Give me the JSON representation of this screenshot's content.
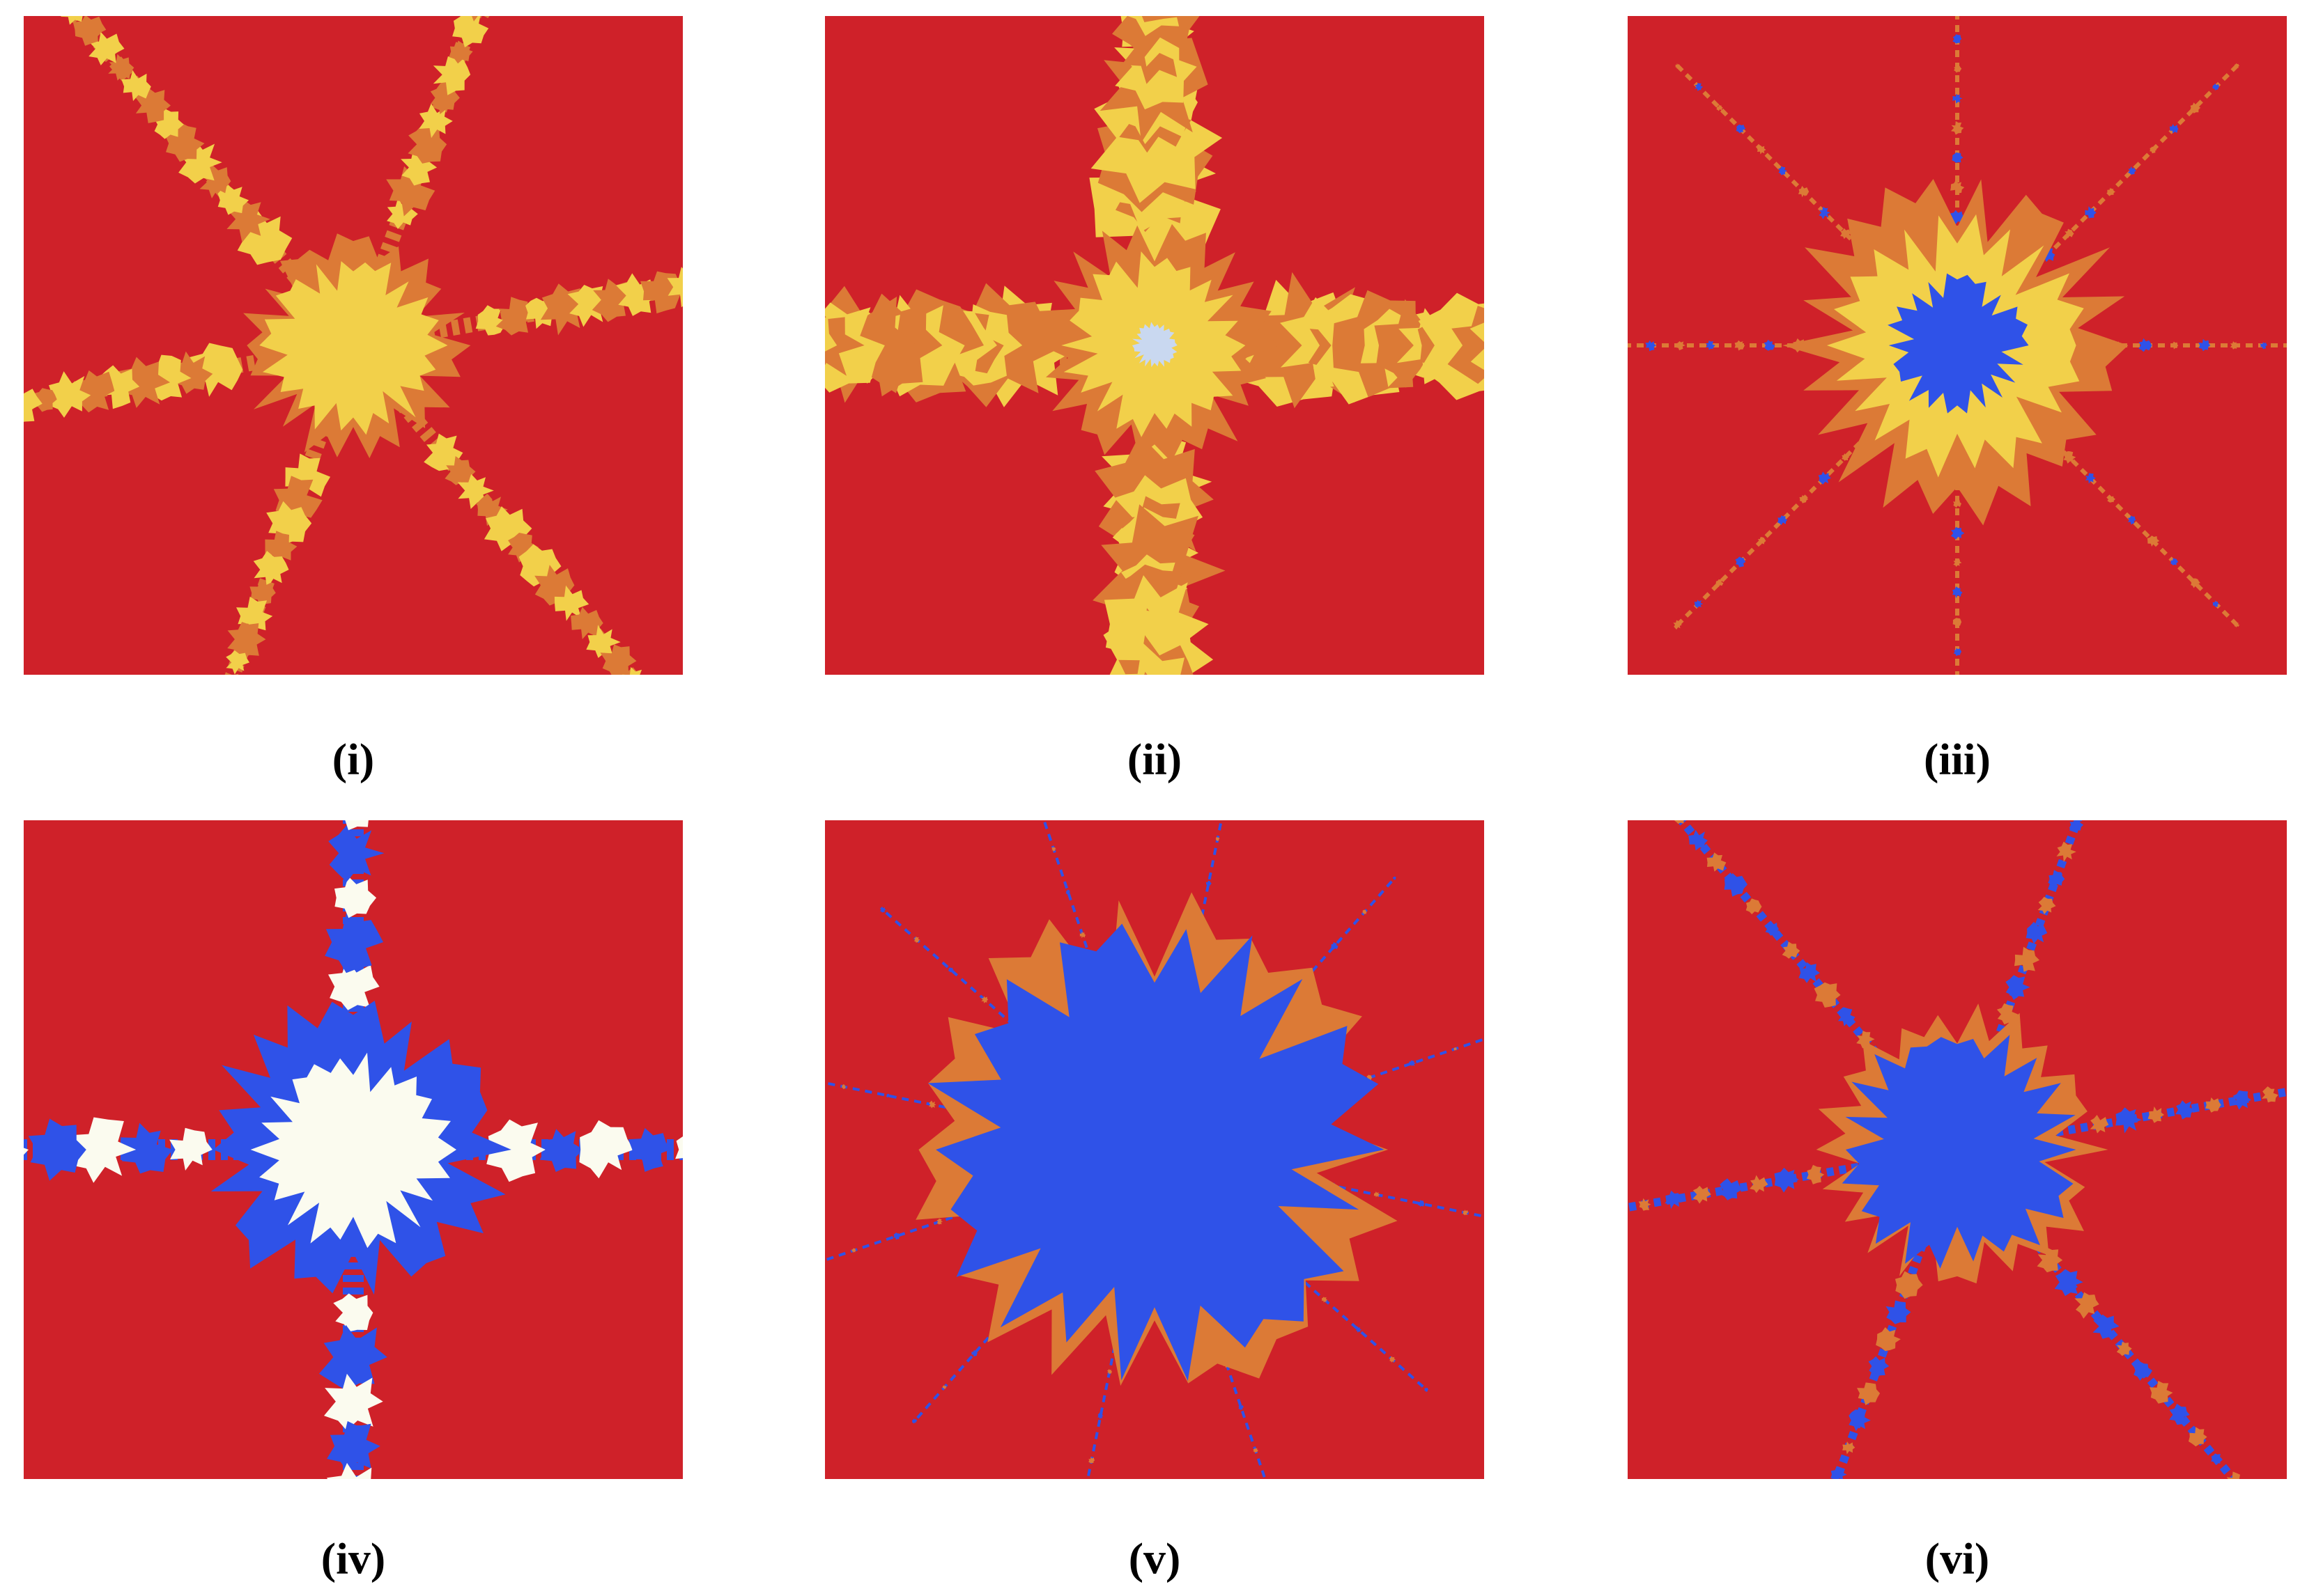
{
  "figure": {
    "panels": [
      {
        "label": "(i)"
      },
      {
        "label": "(ii)"
      },
      {
        "label": "(iii)"
      },
      {
        "label": "(iv)"
      },
      {
        "label": "(v)"
      },
      {
        "label": "(vi)"
      }
    ]
  }
}
